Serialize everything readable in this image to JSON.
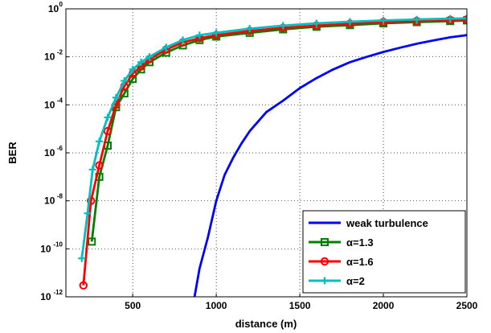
{
  "chart_data": {
    "type": "line",
    "xlabel": "distance (m)",
    "ylabel": "BER",
    "xlim": [
      100,
      2500
    ],
    "ylim_log10": [
      -12,
      0
    ],
    "y_scale": "log",
    "grid": true,
    "legend_placement": "bottom-right",
    "x_ticks": [
      500,
      1000,
      1500,
      2000,
      2500
    ],
    "x_tick_labels": [
      "500",
      "1000",
      "1500",
      "2000",
      "2500"
    ],
    "y_ticks_log10": [
      -12,
      -10,
      -8,
      -6,
      -4,
      -2,
      0
    ],
    "y_tick_base": "10",
    "y_tick_exponents": [
      "-12",
      "-10",
      "-8",
      "-6",
      "-4",
      "-2",
      "0"
    ],
    "series": [
      {
        "name": "weak turbulence",
        "color": "#0000FF",
        "marker": "none",
        "x": [
          870,
          900,
          950,
          1000,
          1050,
          1100,
          1150,
          1200,
          1300,
          1400,
          1500,
          1600,
          1700,
          1800,
          1900,
          2000,
          2100,
          2200,
          2300,
          2400,
          2500
        ],
        "y": [
          1e-12,
          1.5e-11,
          3e-10,
          1e-08,
          1.2e-07,
          6e-07,
          2.4e-06,
          8e-06,
          5e-05,
          0.00015,
          0.0005,
          0.0013,
          0.003,
          0.006,
          0.01,
          0.016,
          0.024,
          0.035,
          0.048,
          0.065,
          0.08
        ]
      },
      {
        "name": "α=1.3",
        "color": "#008000",
        "marker": "square",
        "x": [
          255,
          300,
          350,
          400,
          450,
          500,
          550,
          600,
          700,
          800,
          900,
          1000,
          1200,
          1400,
          1600,
          1800,
          2000,
          2200,
          2400,
          2500
        ],
        "y": [
          2e-10,
          1e-07,
          2e-06,
          8e-05,
          0.0003,
          0.0012,
          0.003,
          0.006,
          0.015,
          0.03,
          0.05,
          0.07,
          0.1,
          0.14,
          0.18,
          0.21,
          0.25,
          0.28,
          0.31,
          0.33
        ]
      },
      {
        "name": "α=1.6",
        "color": "#FF0000",
        "marker": "circle",
        "x": [
          205,
          250,
          300,
          350,
          400,
          450,
          500,
          550,
          600,
          700,
          800,
          900,
          1000,
          1200,
          1400,
          1600,
          1800,
          2000,
          2200,
          2400,
          2500
        ],
        "y": [
          3e-12,
          1e-08,
          3e-07,
          8e-06,
          0.0001,
          0.0006,
          0.002,
          0.004,
          0.008,
          0.02,
          0.04,
          0.06,
          0.08,
          0.12,
          0.16,
          0.2,
          0.24,
          0.28,
          0.31,
          0.34,
          0.36
        ]
      },
      {
        "name": "α=2",
        "color": "#00BFBF",
        "marker": "plus",
        "x": [
          195,
          230,
          260,
          300,
          350,
          400,
          450,
          500,
          550,
          600,
          700,
          800,
          900,
          1000,
          1200,
          1400,
          1600,
          1800,
          2000,
          2200,
          2400,
          2500
        ],
        "y": [
          4e-11,
          3e-09,
          2e-07,
          3e-06,
          3e-05,
          0.0002,
          0.001,
          0.003,
          0.006,
          0.01,
          0.025,
          0.05,
          0.08,
          0.1,
          0.15,
          0.2,
          0.25,
          0.29,
          0.33,
          0.36,
          0.39,
          0.4
        ]
      }
    ]
  }
}
